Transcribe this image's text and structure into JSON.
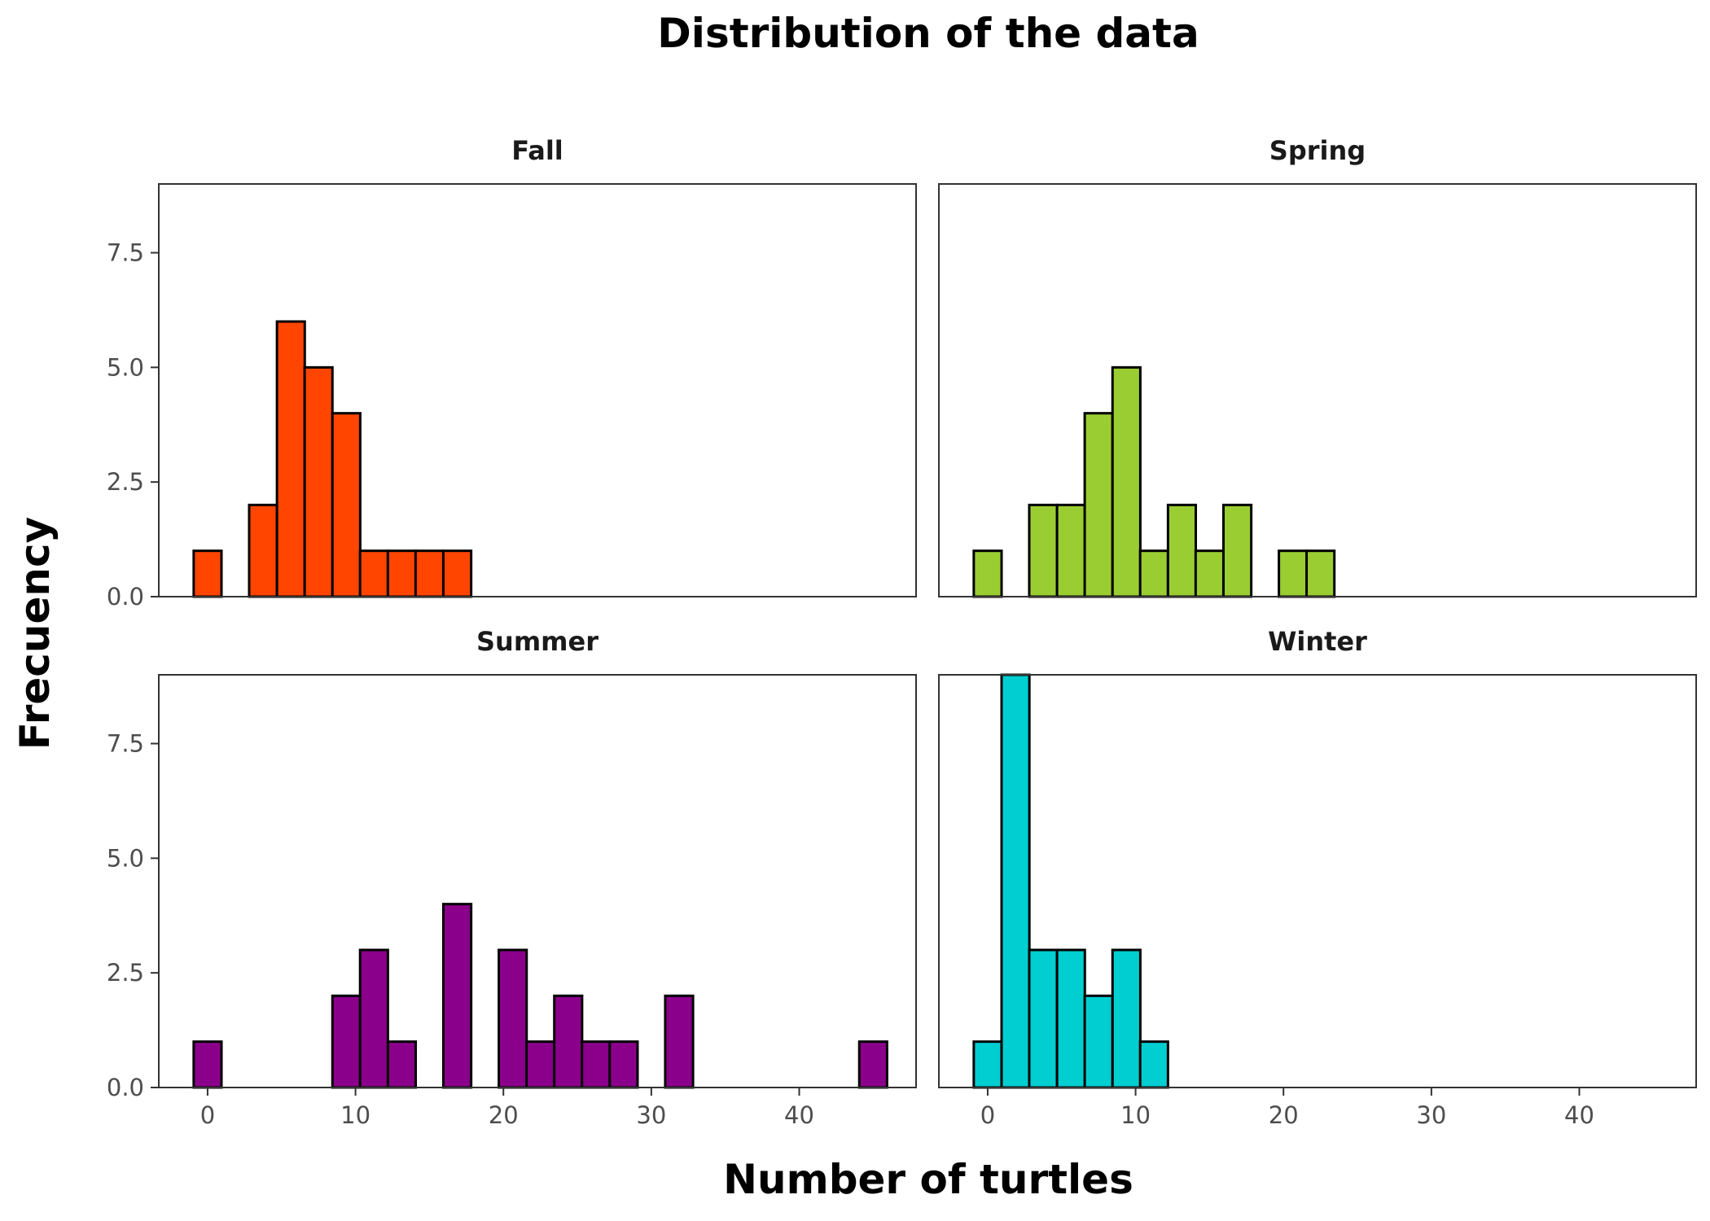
{
  "title": "Distribution of the data",
  "xlabel": "Number of turtles",
  "ylabel": "Frecuency",
  "chart_data": {
    "type": "bar",
    "subtype": "histogram",
    "title": "Distribution of the data",
    "xlabel": "Number of turtles",
    "ylabel": "Frecuency",
    "bin_width": 1.88,
    "xlim": [
      -3.3,
      47.9
    ],
    "ylim": [
      0,
      9
    ],
    "x_ticks": [
      0,
      10,
      20,
      30,
      40
    ],
    "x_tick_labels": [
      "0",
      "10",
      "20",
      "30",
      "40"
    ],
    "y_ticks": [
      0,
      2.5,
      5,
      7.5
    ],
    "y_tick_labels": [
      "0.0",
      "2.5",
      "5.0",
      "7.5"
    ],
    "grid": false,
    "legend": "none",
    "panels": [
      {
        "name": "Fall",
        "color": "#FF4500",
        "x": [
          0.0,
          3.75,
          5.63,
          7.5,
          9.38,
          11.25,
          13.13,
          15.0,
          16.88
        ],
        "values": [
          1,
          2,
          6,
          5,
          4,
          1,
          1,
          1,
          1
        ]
      },
      {
        "name": "Spring",
        "color": "#9ACD32",
        "x": [
          0.0,
          3.75,
          5.63,
          7.5,
          9.38,
          11.25,
          13.13,
          15.0,
          16.88,
          20.63,
          22.5
        ],
        "values": [
          1,
          2,
          2,
          4,
          5,
          1,
          2,
          1,
          2,
          1,
          1
        ]
      },
      {
        "name": "Summer",
        "color": "#8B008B",
        "x": [
          0.0,
          9.38,
          11.25,
          13.13,
          16.88,
          20.63,
          22.5,
          24.38,
          26.25,
          28.13,
          31.88,
          45.0
        ],
        "values": [
          1,
          2,
          3,
          1,
          4,
          3,
          1,
          2,
          1,
          1,
          2,
          1
        ]
      },
      {
        "name": "Winter",
        "color": "#00CED1",
        "x": [
          0.0,
          1.88,
          3.75,
          5.63,
          7.5,
          9.38,
          11.25
        ],
        "values": [
          1,
          9,
          3,
          3,
          2,
          3,
          1
        ]
      }
    ]
  }
}
